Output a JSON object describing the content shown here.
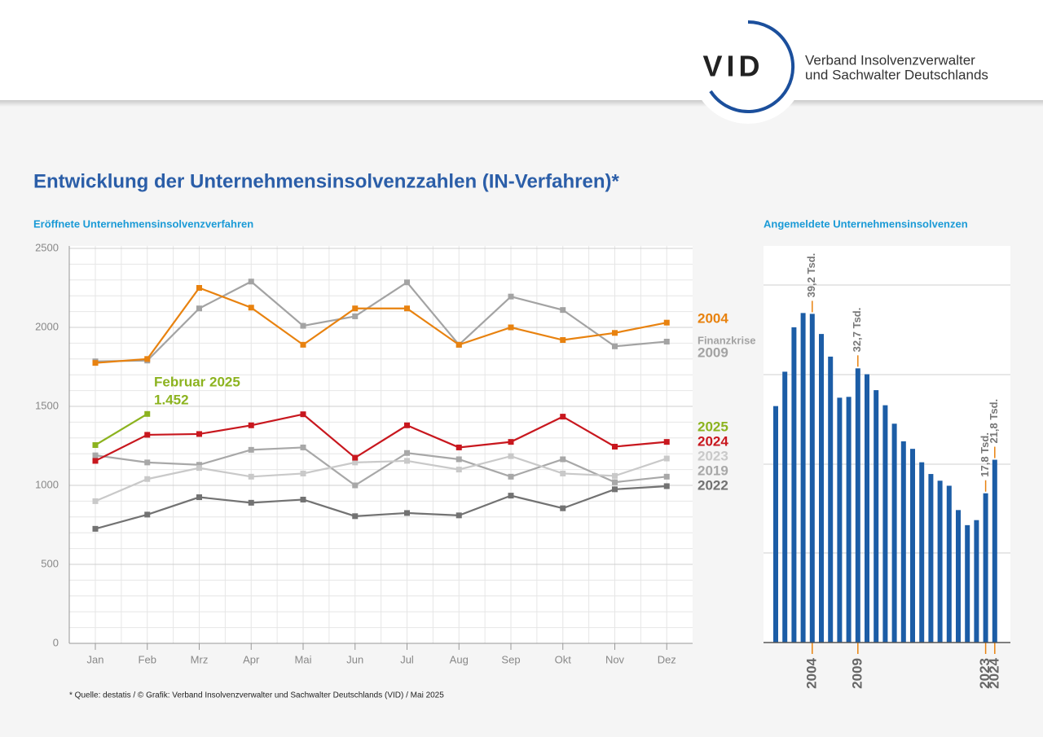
{
  "header": {
    "logo": "VID",
    "org": [
      "Verband Insolvenzverwalter",
      "und Sachwalter Deutschlands"
    ]
  },
  "title": "Entwicklung der Unternehmensinsolvenzzahlen (IN-Verfahren)*",
  "footnote": "* Quelle: destatis / © Grafik: Verband Insolvenzverwalter und Sachwalter Deutschlands (VID) / Mai 2025",
  "chart_data": [
    {
      "type": "line",
      "title": "Eröffnete Unternehmensinsolvenzverfahren",
      "categories": [
        "Jan",
        "Feb",
        "Mrz",
        "Apr",
        "Mai",
        "Jun",
        "Jul",
        "Aug",
        "Sep",
        "Okt",
        "Nov",
        "Dez"
      ],
      "ylim": [
        0,
        2500
      ],
      "yticks": [
        0,
        500,
        1000,
        1500,
        2000,
        2500
      ],
      "grid": true,
      "annotation": "Februar 2025",
      "series": [
        {
          "name": "2004",
          "color": "#e8820f",
          "values": [
            1775,
            1800,
            2250,
            2125,
            1890,
            2120,
            2120,
            1890,
            2000,
            1920,
            1965,
            2030
          ]
        },
        {
          "name": "2009",
          "note": "Finanzkrise",
          "color": "#a3a3a3",
          "values": [
            1785,
            1790,
            2120,
            2290,
            2010,
            2070,
            2285,
            1890,
            2195,
            2110,
            1880,
            1910
          ]
        },
        {
          "name": "2025",
          "color": "#8cb31f",
          "values": [
            1255,
            1452,
            null,
            null,
            null,
            null,
            null,
            null,
            null,
            null,
            null,
            null
          ],
          "value_labels": [
            null,
            "1.452",
            null,
            null,
            null,
            null,
            null,
            null,
            null,
            null,
            null,
            null
          ]
        },
        {
          "name": "2024",
          "color": "#c8171e",
          "values": [
            1155,
            1320,
            1325,
            1380,
            1450,
            1175,
            1380,
            1240,
            1275,
            1435,
            1245,
            1275
          ]
        },
        {
          "name": "2023",
          "color": "#c9c9c9",
          "values": [
            900,
            1040,
            1110,
            1055,
            1075,
            1145,
            1155,
            1100,
            1185,
            1075,
            1060,
            1170
          ]
        },
        {
          "name": "2019",
          "color": "#a8a8a8",
          "values": [
            1190,
            1145,
            1130,
            1225,
            1240,
            1000,
            1205,
            1165,
            1055,
            1165,
            1020,
            1055
          ]
        },
        {
          "name": "2022",
          "color": "#727272",
          "values": [
            725,
            815,
            925,
            890,
            910,
            805,
            825,
            810,
            935,
            855,
            975,
            995
          ]
        }
      ]
    },
    {
      "type": "bar",
      "title": "Angemeldete Unternehmensinsolvenzen",
      "color": "#1c5da6",
      "categories": [
        null,
        null,
        null,
        null,
        "2004",
        null,
        null,
        null,
        null,
        "2009",
        null,
        null,
        null,
        null,
        null,
        null,
        null,
        null,
        null,
        null,
        null,
        null,
        null,
        "2023",
        "2024"
      ],
      "values": [
        28.2,
        32.3,
        37.6,
        39.3,
        39.2,
        36.8,
        34.1,
        29.2,
        29.3,
        32.7,
        32.0,
        30.1,
        28.3,
        26.1,
        24.0,
        23.1,
        21.5,
        20.1,
        19.3,
        18.7,
        15.8,
        14.0,
        14.6,
        17.8,
        21.8
      ],
      "value_labels": [
        null,
        null,
        null,
        null,
        "39,2 Tsd.",
        null,
        null,
        null,
        null,
        "32,7 Tsd.",
        null,
        null,
        null,
        null,
        null,
        null,
        null,
        null,
        null,
        null,
        null,
        null,
        null,
        "17,8 Tsd.",
        "21,8 Tsd."
      ],
      "ylim": [
        0,
        47.3
      ]
    }
  ]
}
